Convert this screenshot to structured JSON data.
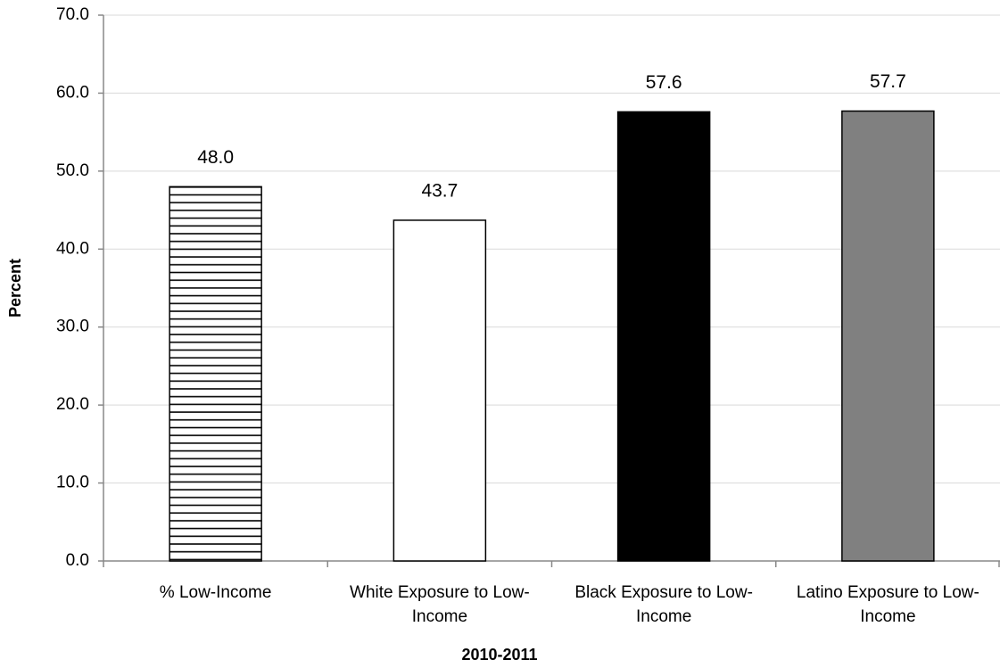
{
  "chart_data": {
    "type": "bar",
    "categories": [
      "% Low-Income",
      "White Exposure to Low-Income",
      "Black Exposure to Low-Income",
      "Latino Exposure to Low-Income"
    ],
    "values": [
      48.0,
      43.7,
      57.6,
      57.7
    ],
    "value_labels": [
      "48.0",
      "43.7",
      "57.6",
      "57.7"
    ],
    "colors": [
      "#ffffff",
      "#ffffff",
      "#000000",
      "#808080"
    ],
    "hatch": [
      true,
      false,
      false,
      false
    ],
    "xlabel": "2010-2011",
    "ylabel": "Percent",
    "ylim": [
      0,
      70
    ],
    "yticks": [
      {
        "value": 0,
        "label": "0.0"
      },
      {
        "value": 10,
        "label": "10.0"
      },
      {
        "value": 20,
        "label": "20.0"
      },
      {
        "value": 30,
        "label": "30.0"
      },
      {
        "value": 40,
        "label": "40.0"
      },
      {
        "value": 50,
        "label": "50.0"
      },
      {
        "value": 60,
        "label": "60.0"
      },
      {
        "value": 70,
        "label": "70.0"
      }
    ],
    "grid": true
  }
}
